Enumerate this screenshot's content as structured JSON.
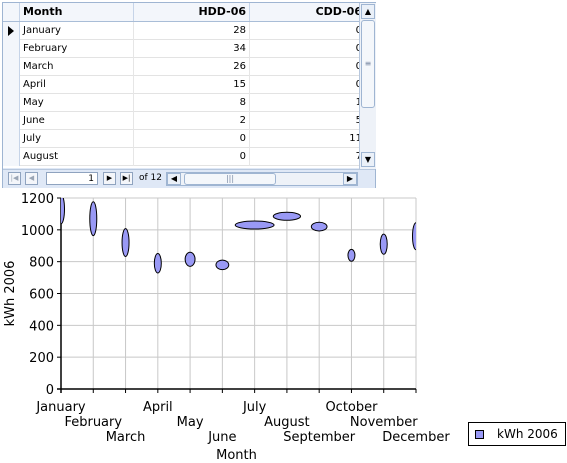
{
  "grid": {
    "columns": [
      "Month",
      "HDD-06",
      "CDD-06"
    ],
    "rows": [
      {
        "month": "January",
        "hdd": "28",
        "cdd": "0"
      },
      {
        "month": "February",
        "hdd": "34",
        "cdd": "0"
      },
      {
        "month": "March",
        "hdd": "26",
        "cdd": "0"
      },
      {
        "month": "April",
        "hdd": "15",
        "cdd": "0"
      },
      {
        "month": "May",
        "hdd": "8",
        "cdd": "1"
      },
      {
        "month": "June",
        "hdd": "2",
        "cdd": "5"
      },
      {
        "month": "July",
        "hdd": "0",
        "cdd": "11"
      },
      {
        "month": "August",
        "hdd": "0",
        "cdd": "7"
      }
    ],
    "navigator": {
      "position": "1",
      "total_label": "of 12"
    }
  },
  "chart_data": {
    "type": "scatter",
    "xlabel": "Month",
    "ylabel": "kWh 2006",
    "ylim": [
      0,
      1200
    ],
    "yticks": [
      "0",
      "200",
      "400",
      "600",
      "800",
      "1000",
      "1200"
    ],
    "categories": [
      "January",
      "February",
      "March",
      "April",
      "May",
      "June",
      "July",
      "August",
      "September",
      "October",
      "November",
      "December"
    ],
    "series": [
      {
        "name": "kWh 2006",
        "color": "#9999f5",
        "values": [
          1130,
          1070,
          920,
          790,
          815,
          780,
          1030,
          1085,
          1020,
          840,
          910,
          960
        ],
        "marker_widths": [
          0,
          0,
          0,
          0,
          1,
          2,
          11,
          7,
          3,
          0,
          0,
          0
        ],
        "marker_heights": [
          28,
          34,
          26,
          15,
          8,
          2,
          0,
          0,
          1,
          5,
          16,
          25
        ]
      }
    ],
    "legend": {
      "position": "right",
      "entries": [
        "kWh 2006"
      ]
    },
    "grid": true
  }
}
